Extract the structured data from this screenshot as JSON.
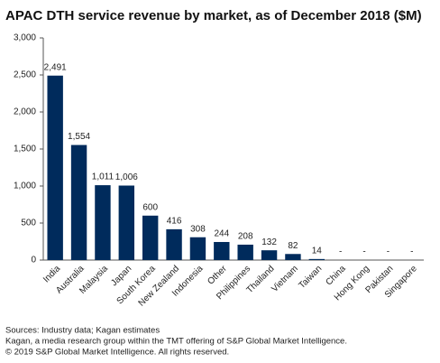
{
  "chart_data": {
    "type": "bar",
    "title": "APAC DTH service revenue by market, as of December 2018 ($M)",
    "categories": [
      "India",
      "Australia",
      "Malaysia",
      "Japan",
      "South Korea",
      "New Zealand",
      "Indonesia",
      "Other",
      "Philippines",
      "Thailand",
      "Vietnam",
      "Taiwan",
      "China",
      "Hong Kong",
      "Pakistan",
      "Singapore"
    ],
    "values": [
      2491,
      1554,
      1011,
      1006,
      600,
      416,
      308,
      244,
      208,
      132,
      82,
      14,
      null,
      null,
      null,
      null
    ],
    "value_labels": [
      "2,491",
      "1,554",
      "1,011",
      "1,006",
      "600",
      "416",
      "308",
      "244",
      "208",
      "132",
      "82",
      "14",
      "-",
      "-",
      "-",
      "-"
    ],
    "color": "#002b5c",
    "ylim": [
      0,
      3000
    ],
    "yticks": [
      0,
      500,
      {
        "value": 1000,
        "label": "1,000"
      },
      {
        "value": 1500,
        "label": "1,500"
      },
      {
        "value": 2000,
        "label": "2,000"
      },
      {
        "value": 2500,
        "label": "2,500"
      },
      {
        "value": 3000,
        "label": "3,000"
      }
    ],
    "grid": false,
    "notes": [
      "Sources: Industry data; Kagan estimates",
      "Kagan, a media research group within the TMT offering of S&P Global Market Intelligence.",
      "© 2019 S&P Global Market Intelligence. All rights reserved."
    ]
  }
}
